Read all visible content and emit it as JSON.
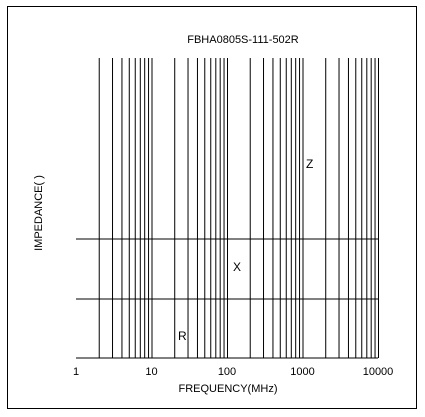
{
  "chart_data": {
    "type": "line",
    "title": "FBHA0805S-111-502R",
    "xlabel": "FREQUENCY(MHz)",
    "ylabel": "IMPEDANCE(   )",
    "x_scale": "log",
    "xlim": [
      1,
      10000
    ],
    "x_ticks": [
      "1",
      "10",
      "100",
      "1000",
      "10000"
    ],
    "grid": true,
    "series": [
      {
        "name": "Z",
        "values": []
      },
      {
        "name": "X",
        "values": []
      },
      {
        "name": "R",
        "values": []
      }
    ],
    "colors": {
      "Z": "#000000",
      "X": "#a64aa6",
      "R": "#d6423a"
    }
  }
}
